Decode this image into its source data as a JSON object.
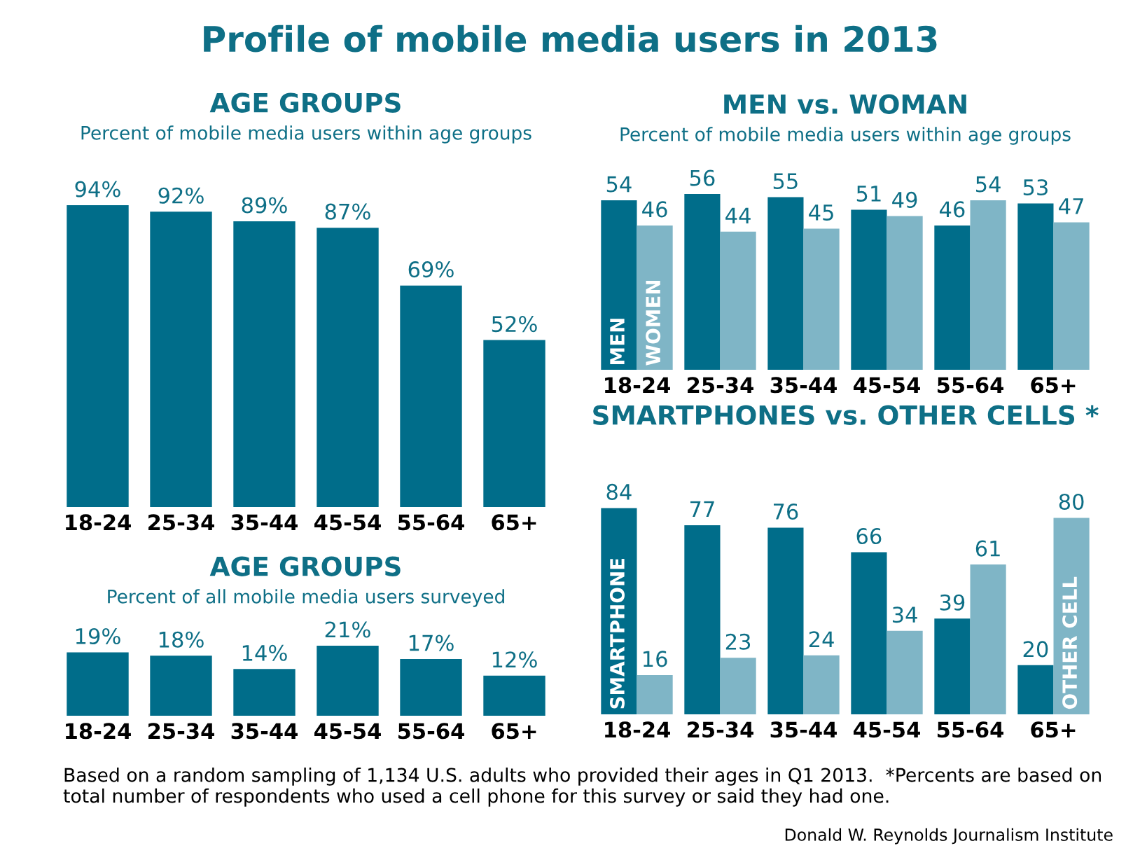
{
  "chart_data": [
    {
      "type": "other",
      "title": "Profile of mobile media users in 2013",
      "annotations": [
        "Based on a random sampling of 1,134 U.S. adults who provided their ages in Q1 2013.  *Percents are based on total number of respondents who used a cell phone for this survey or said they had one.",
        "Donald W. Reynolds Journalism Institute"
      ]
    },
    {
      "type": "bar",
      "title": "AGE GROUPS",
      "subtitle": "Percent of mobile media users within age groups",
      "categories": [
        "18-24",
        "25-34",
        "35-44",
        "45-54",
        "55-64",
        "65+"
      ],
      "values": [
        94,
        92,
        89,
        87,
        69,
        52
      ],
      "value_labels": [
        "94%",
        "92%",
        "89%",
        "87%",
        "69%",
        "52%"
      ],
      "color": "#006d8a",
      "tick_labels": "x",
      "grid": false,
      "legend": false
    },
    {
      "type": "bar",
      "title": "MEN vs. WOMAN",
      "subtitle": "Percent of mobile media users within age groups",
      "categories": [
        "18-24",
        "25-34",
        "35-44",
        "45-54",
        "55-64",
        "65+"
      ],
      "series": [
        {
          "name": "MEN",
          "color": "#006d8a",
          "values": [
            54,
            56,
            55,
            51,
            46,
            53
          ]
        },
        {
          "name": "WOMEN",
          "color": "#7fb5c6",
          "values": [
            46,
            44,
            45,
            49,
            54,
            47
          ]
        }
      ],
      "data_labels": true,
      "tick_labels": "x",
      "grid": false,
      "legend": false
    },
    {
      "type": "bar",
      "title": "AGE GROUPS",
      "subtitle": "Percent of all mobile media users surveyed",
      "categories": [
        "18-24",
        "25-34",
        "35-44",
        "45-54",
        "55-64",
        "65+"
      ],
      "values": [
        19,
        18,
        14,
        21,
        17,
        12
      ],
      "value_labels": [
        "19%",
        "18%",
        "14%",
        "21%",
        "17%",
        "12%"
      ],
      "color": "#006d8a",
      "tick_labels": "x",
      "grid": false,
      "legend": false
    },
    {
      "type": "bar",
      "title": "SMARTPHONES vs. OTHER CELLS *",
      "categories": [
        "18-24",
        "25-34",
        "35-44",
        "45-54",
        "55-64",
        "65+"
      ],
      "series": [
        {
          "name": "SMARTPHONE",
          "color": "#006d8a",
          "values": [
            84,
            77,
            76,
            66,
            39,
            20
          ]
        },
        {
          "name": "OTHER CELL",
          "color": "#7fb5c6",
          "values": [
            16,
            23,
            24,
            34,
            61,
            80
          ]
        }
      ],
      "data_labels": true,
      "tick_labels": "x",
      "grid": false,
      "legend": false
    }
  ]
}
